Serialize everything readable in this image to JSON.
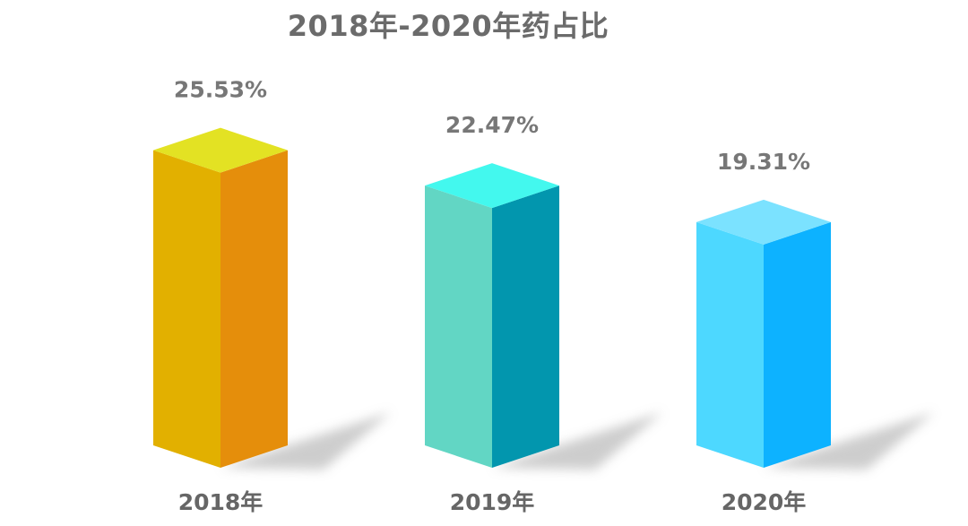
{
  "chart_data": {
    "type": "bar",
    "title": "2018年-2020年药占比",
    "categories": [
      "2018年",
      "2019年",
      "2020年"
    ],
    "values": [
      25.53,
      22.47,
      19.31
    ],
    "value_labels": [
      "25.53%",
      "22.47%",
      "19.31%"
    ],
    "xlabel": "",
    "ylabel": "",
    "ylim": [
      0,
      30
    ],
    "grid": false,
    "legend": "none",
    "colors": [
      {
        "front": "#E2B000",
        "side": "#E58E0B",
        "top": "#E3E223"
      },
      {
        "front": "#62D6C4",
        "side": "#0296AE",
        "top": "#43F8EE"
      },
      {
        "front": "#4DD8FF",
        "side": "#0DB2FF",
        "top": "#7BE2FF"
      }
    ]
  }
}
